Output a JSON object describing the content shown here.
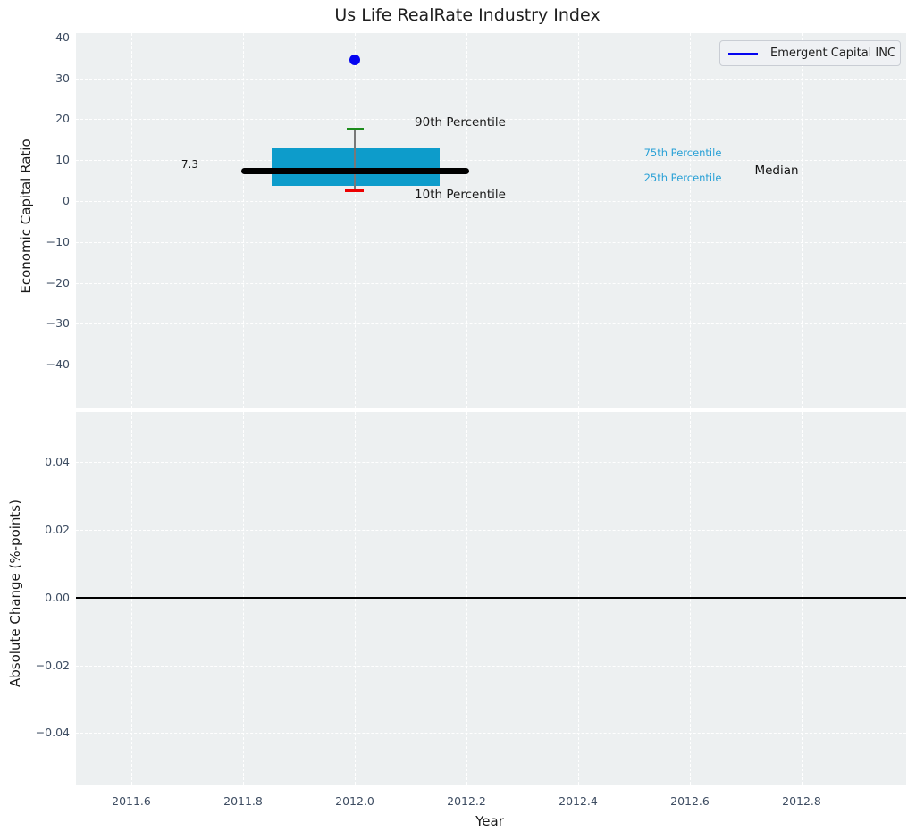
{
  "title": "Us Life RealRate Industry Index",
  "legend": {
    "label": "Emergent Capital INC",
    "line_color": "#0000f0"
  },
  "axes": {
    "xlabel": "Year",
    "xticks": [
      "2011.6",
      "2011.8",
      "2012.0",
      "2012.2",
      "2012.4",
      "2012.6",
      "2012.8"
    ],
    "top": {
      "ylabel": "Economic Capital Ratio",
      "yticks": [
        "40",
        "30",
        "20",
        "10",
        "0",
        "−10",
        "−20",
        "−30",
        "−40"
      ]
    },
    "bottom": {
      "ylabel": "Absolute Change (%-points)",
      "yticks": [
        "0.04",
        "0.02",
        "0.00",
        "−0.02",
        "−0.04"
      ]
    }
  },
  "annotations": {
    "p90_label": "90th Percentile",
    "p10_label": "10th Percentile",
    "p75_label": "75th Percentile",
    "p25_label": "25th Percentile",
    "median_label": "Median",
    "median_value": "7.3"
  },
  "colors": {
    "box_fill": "#0d9ccb",
    "percentile_text": "#28a0d6",
    "p90_cap": "#1c8c1c",
    "p10_cap": "#ed0000",
    "scatter": "#0000f0",
    "median_line": "#000000",
    "plot_background": "#edf0f1"
  },
  "chart_data": {
    "type": "boxplot+scatter",
    "title": "Us Life RealRate Industry Index",
    "xlabel": "Year",
    "xlim": [
      2011.5,
      2013.0
    ],
    "grid": true,
    "legend_position": "upper right",
    "panels": [
      {
        "name": "top",
        "ylabel": "Economic Capital Ratio",
        "ylim": [
          -50,
          41
        ],
        "yticks": [
          40,
          30,
          20,
          10,
          0,
          -10,
          -20,
          -30,
          -40
        ],
        "series": [
          {
            "name": "Emergent Capital INC",
            "type": "scatter",
            "color": "blue",
            "x": [
              2012.0
            ],
            "y": [
              34.5
            ]
          },
          {
            "name": "Industry percentile box",
            "type": "box",
            "x_center": 2012.0,
            "box_x_range": [
              2011.85,
              2012.15
            ],
            "median_x_range": [
              2011.8,
              2012.2
            ],
            "p10": 2.6,
            "p25": 3.7,
            "median": 7.3,
            "p75": 13.0,
            "p90": 17.5
          }
        ]
      },
      {
        "name": "bottom",
        "ylabel": "Absolute Change (%-points)",
        "ylim": [
          -0.055,
          0.055
        ],
        "yticks": [
          0.04,
          0.02,
          0.0,
          -0.02,
          -0.04
        ],
        "series": [
          {
            "name": "zero reference line",
            "type": "line",
            "color": "black",
            "y": 0.0
          }
        ]
      }
    ]
  }
}
